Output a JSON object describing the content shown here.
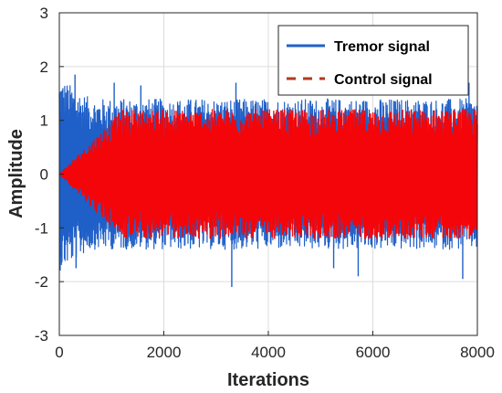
{
  "chart_data": {
    "type": "line",
    "xlabel": "Iterations",
    "ylabel": "Amplitude",
    "xlim": [
      0,
      8000
    ],
    "ylim": [
      -3,
      3
    ],
    "x_ticks": [
      0,
      2000,
      4000,
      6000,
      8000
    ],
    "y_ticks": [
      -3,
      -2,
      -1,
      0,
      1,
      2,
      3
    ],
    "grid": true,
    "legend_position": "top-right",
    "series": [
      {
        "name": "Tremor signal",
        "color": "#1f5fc8",
        "style": "solid",
        "envelope": {
          "start_peak": 1.8,
          "steady_min": -1.4,
          "steady_max": 1.4
        },
        "spikes": [
          {
            "x": 300,
            "y": 1.85
          },
          {
            "x": 320,
            "y": -1.75
          },
          {
            "x": 1050,
            "y": 1.7
          },
          {
            "x": 1560,
            "y": 1.65
          },
          {
            "x": 3380,
            "y": 1.7
          },
          {
            "x": 7840,
            "y": 1.7
          },
          {
            "x": 3300,
            "y": -2.1
          },
          {
            "x": 5250,
            "y": -1.75
          },
          {
            "x": 5720,
            "y": -1.9
          },
          {
            "x": 7720,
            "y": -1.95
          }
        ]
      },
      {
        "name": "Control signal",
        "color": "#ff0000",
        "style": "dashed",
        "legend_color": "#b03a1c",
        "envelope": {
          "start_peak": 0,
          "steady_min": -1.2,
          "steady_max": 1.2
        }
      }
    ]
  }
}
